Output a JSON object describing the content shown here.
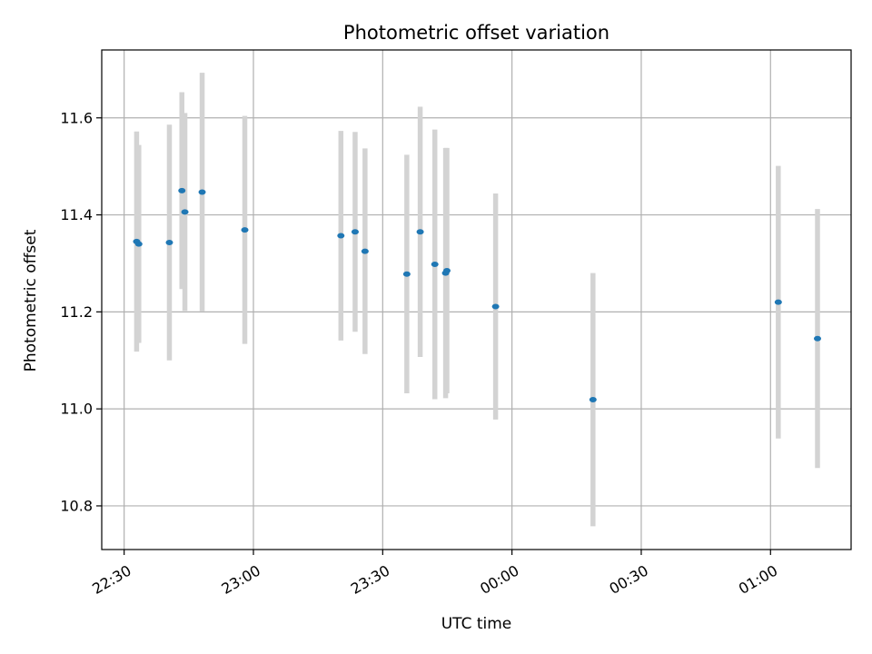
{
  "chart_data": {
    "type": "scatter",
    "title": "Photometric offset variation",
    "xlabel": "UTC time",
    "ylabel": "Photometric offset",
    "x_tick_labels": [
      "22:30",
      "23:00",
      "23:30",
      "00:00",
      "00:30",
      "01:00"
    ],
    "x_ticks_minutes": [
      -90,
      -60,
      -30,
      0,
      30,
      60
    ],
    "y_tick_labels": [
      "10.8",
      "11.0",
      "11.2",
      "11.4",
      "11.6"
    ],
    "y_ticks": [
      10.8,
      11.0,
      11.2,
      11.4,
      11.6
    ],
    "xlim_minutes": [
      -95.2,
      78.7
    ],
    "ylim": [
      10.71,
      11.74
    ],
    "grid": true,
    "marker_color": "#1f77b4",
    "errorbar_color": "#d3d3d3",
    "points": [
      {
        "t": "22:32:54",
        "y": 11.345,
        "err": 0.227
      },
      {
        "t": "22:33:24",
        "y": 11.34,
        "err": 0.204
      },
      {
        "t": "22:40:30",
        "y": 11.343,
        "err": 0.243
      },
      {
        "t": "22:43:24",
        "y": 11.45,
        "err": 0.203
      },
      {
        "t": "22:44:06",
        "y": 11.406,
        "err": 0.204
      },
      {
        "t": "22:48:06",
        "y": 11.447,
        "err": 0.246
      },
      {
        "t": "22:58:00",
        "y": 11.369,
        "err": 0.235
      },
      {
        "t": "23:20:18",
        "y": 11.357,
        "err": 0.216
      },
      {
        "t": "23:23:36",
        "y": 11.365,
        "err": 0.206
      },
      {
        "t": "23:25:54",
        "y": 11.325,
        "err": 0.212
      },
      {
        "t": "23:35:36",
        "y": 11.278,
        "err": 0.246
      },
      {
        "t": "23:38:42",
        "y": 11.365,
        "err": 0.258
      },
      {
        "t": "23:42:06",
        "y": 11.298,
        "err": 0.278
      },
      {
        "t": "23:44:36",
        "y": 11.28,
        "err": 0.258
      },
      {
        "t": "23:44:54",
        "y": 11.285,
        "err": 0.253
      },
      {
        "t": "23:56:12",
        "y": 11.211,
        "err": 0.233
      },
      {
        "t": "00:18:48",
        "y": 11.019,
        "err": 0.261
      },
      {
        "t": "01:01:48",
        "y": 11.22,
        "err": 0.281
      },
      {
        "t": "01:10:54",
        "y": 11.145,
        "err": 0.267
      }
    ]
  }
}
